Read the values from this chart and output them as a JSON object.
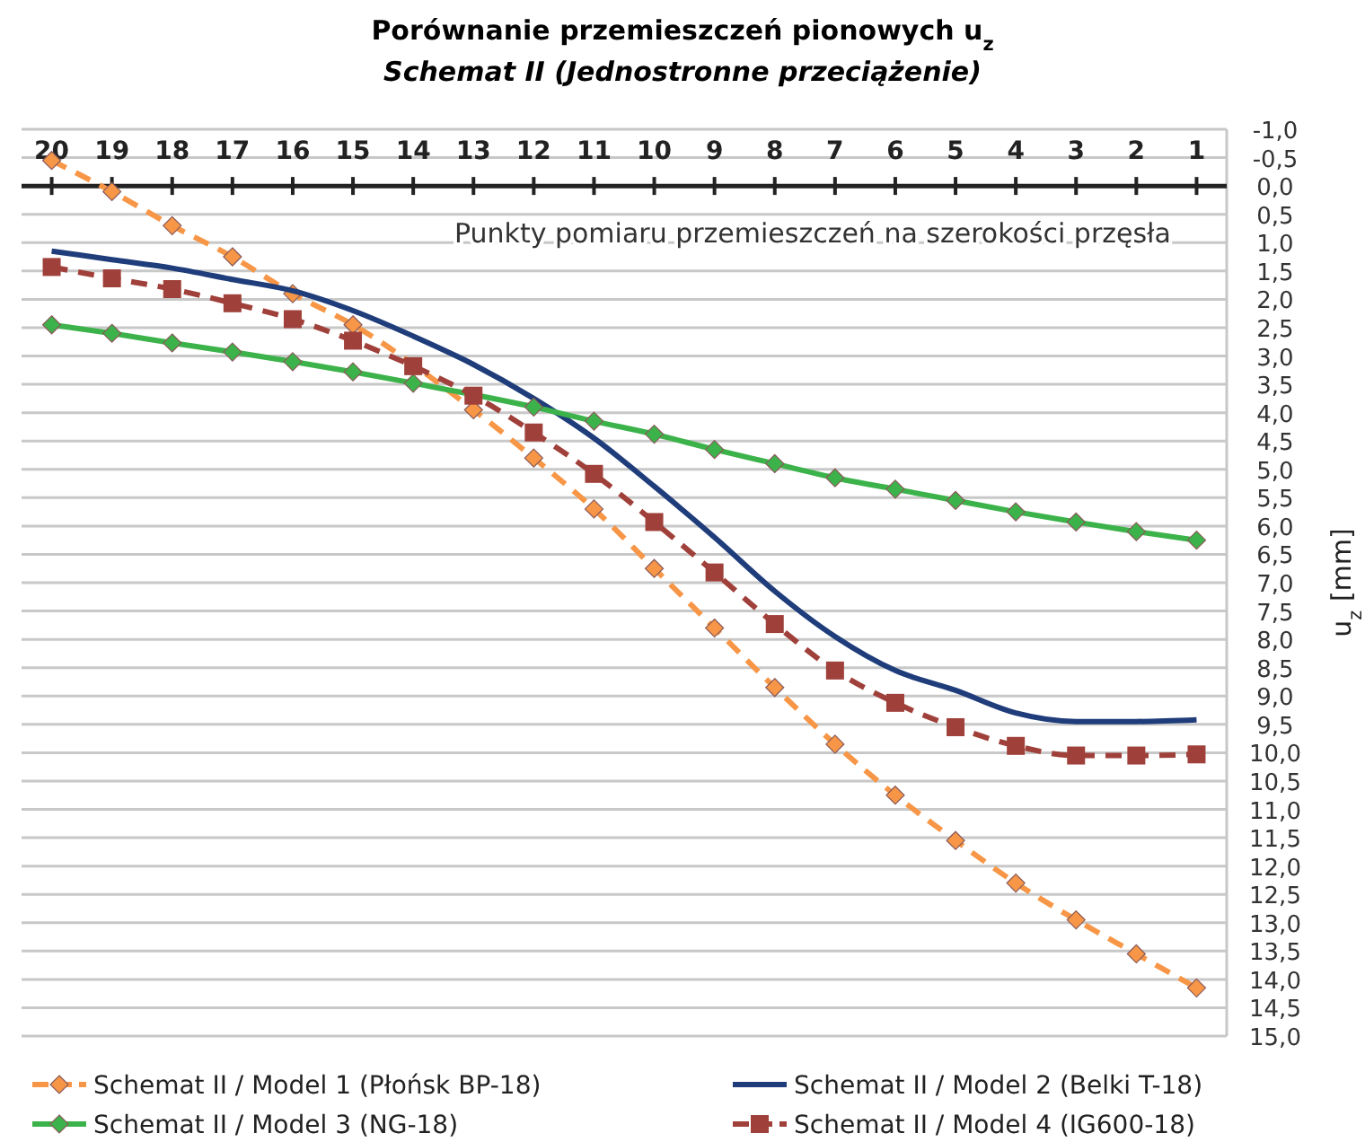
{
  "chart_data": {
    "type": "line",
    "title": "Porównanie przemieszczeń pionowych u$_{z}$",
    "subtitle": "Schemat II (Jednostronne przeciążenie)",
    "ylabel": "u$_{z}$ [mm]",
    "annotations": [
      "Punkty pomiaru przemieszczeń na szerokości przęsła"
    ],
    "categories": [
      "20",
      "19",
      "18",
      "17",
      "16",
      "15",
      "14",
      "13",
      "12",
      "11",
      "10",
      "9",
      "8",
      "7",
      "6",
      "5",
      "4",
      "3",
      "2",
      "1"
    ],
    "ylim": [
      15,
      -1
    ],
    "yticks": [
      {
        "value": -1,
        "label": "-1,0"
      },
      {
        "value": -0.5,
        "label": "-0,5"
      },
      {
        "value": 0,
        "label": "0,0"
      },
      {
        "value": 0.5,
        "label": "0,5"
      },
      {
        "value": 1,
        "label": "1,0"
      },
      {
        "value": 1.5,
        "label": "1,5"
      },
      {
        "value": 2,
        "label": "2,0"
      },
      {
        "value": 2.5,
        "label": "2,5"
      },
      {
        "value": 3,
        "label": "3,0"
      },
      {
        "value": 3.5,
        "label": "3,5"
      },
      {
        "value": 4,
        "label": "4,0"
      },
      {
        "value": 4.5,
        "label": "4,5"
      },
      {
        "value": 5,
        "label": "5,0"
      },
      {
        "value": 5.5,
        "label": "5,5"
      },
      {
        "value": 6,
        "label": "6,0"
      },
      {
        "value": 6.5,
        "label": "6,5"
      },
      {
        "value": 7,
        "label": "7,0"
      },
      {
        "value": 7.5,
        "label": "7,5"
      },
      {
        "value": 8,
        "label": "8,0"
      },
      {
        "value": 8.5,
        "label": "8,5"
      },
      {
        "value": 9,
        "label": "9,0"
      },
      {
        "value": 9.5,
        "label": "9,5"
      },
      {
        "value": 10,
        "label": "10,0"
      },
      {
        "value": 10.5,
        "label": "10,5"
      },
      {
        "value": 11,
        "label": "11,0"
      },
      {
        "value": 11.5,
        "label": "11,5"
      },
      {
        "value": 12,
        "label": "12,0"
      },
      {
        "value": 12.5,
        "label": "12,5"
      },
      {
        "value": 13,
        "label": "13,0"
      },
      {
        "value": 13.5,
        "label": "13,5"
      },
      {
        "value": 14,
        "label": "14,0"
      },
      {
        "value": 14.5,
        "label": "14,5"
      },
      {
        "value": 15,
        "label": "15,0"
      }
    ],
    "grid": "y",
    "legend": "bottom",
    "series": [
      {
        "name": "Schemat II / Model 1 (Płońsk BP-18)",
        "color": "#f79646",
        "marker": "diamond",
        "line_style": "dashed",
        "values": [
          -0.45,
          0.1,
          0.7,
          1.25,
          1.9,
          2.45,
          null,
          3.95,
          4.8,
          5.7,
          6.75,
          7.8,
          8.85,
          9.85,
          10.75,
          11.55,
          12.3,
          12.95,
          13.55,
          14.15
        ]
      },
      {
        "name": "Schemat II / Model 2 (Belki T-18)",
        "color": "#1f3d7a",
        "marker": "none",
        "line_style": "solid",
        "values": [
          1.15,
          1.3,
          1.45,
          1.65,
          1.85,
          2.2,
          2.65,
          3.15,
          3.75,
          4.45,
          5.3,
          6.2,
          7.15,
          7.95,
          8.55,
          8.9,
          9.3,
          9.45,
          9.45,
          9.42
        ]
      },
      {
        "name": "Schemat II / Model 3 (NG-18)",
        "color": "#3cb34a",
        "marker": "diamond",
        "line_style": "solid",
        "values": [
          2.45,
          2.6,
          2.77,
          2.93,
          3.1,
          3.28,
          3.48,
          null,
          3.9,
          4.15,
          4.38,
          4.65,
          4.9,
          5.15,
          5.35,
          5.55,
          5.75,
          5.93,
          6.1,
          6.25
        ]
      },
      {
        "name": "Schemat II / Model 4 (IG600-18)",
        "color": "#a0403a",
        "marker": "square",
        "line_style": "dashed",
        "values": [
          1.43,
          1.63,
          1.82,
          2.07,
          2.35,
          2.73,
          3.18,
          3.7,
          4.35,
          5.08,
          5.93,
          6.82,
          7.73,
          8.55,
          9.12,
          9.55,
          9.88,
          10.05,
          10.05,
          10.03
        ]
      }
    ]
  }
}
